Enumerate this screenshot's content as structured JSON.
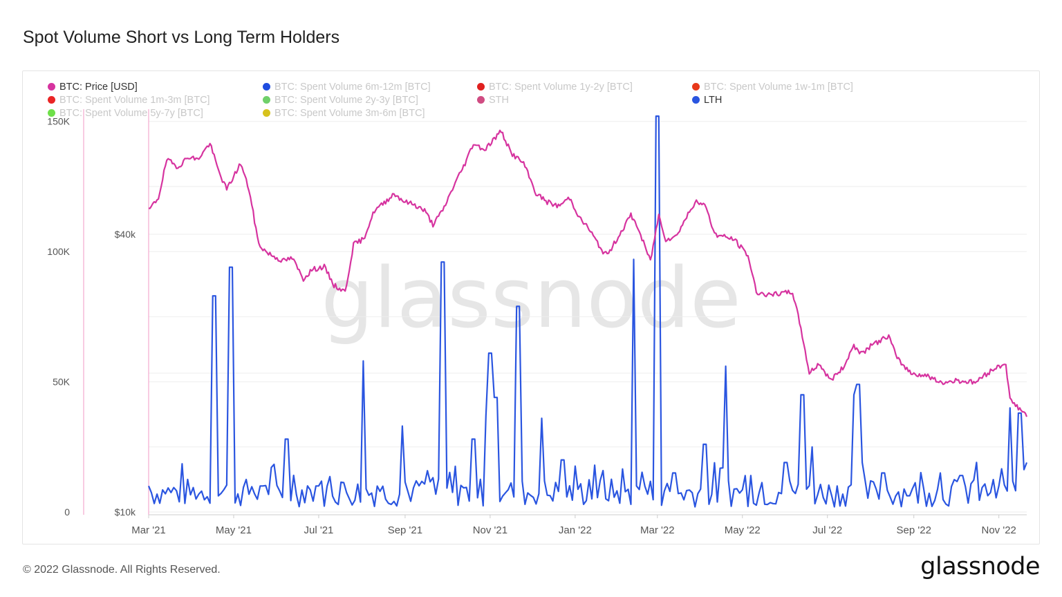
{
  "header": {
    "title": "Spot Volume Short vs Long Term Holders"
  },
  "footer": {
    "copyright": "© 2022 Glassnode. All Rights Reserved.",
    "brand": "glassnode"
  },
  "watermark": "glassnode",
  "legend": [
    {
      "label": "BTC: Price [USD]",
      "color": "#d6339f",
      "active": true
    },
    {
      "label": "BTC: Spent Volume 6m-12m [BTC]",
      "color": "#1f4de0",
      "active": false
    },
    {
      "label": "BTC: Spent Volume 1y-2y [BTC]",
      "color": "#e0201f",
      "active": false
    },
    {
      "label": "BTC: Spent Volume 1w-1m [BTC]",
      "color": "#e8381a",
      "active": false
    },
    {
      "label": "BTC: Spent Volume 1m-3m [BTC]",
      "color": "#ea2525",
      "active": false
    },
    {
      "label": "BTC: Spent Volume 2y-3y [BTC]",
      "color": "#6fd06a",
      "active": false
    },
    {
      "label": "STH",
      "color": "#d04c82",
      "active": false
    },
    {
      "label": "LTH",
      "color": "#2a55e0",
      "active": true
    },
    {
      "label": "BTC: Spent Volume 5y-7y [BTC]",
      "color": "#6fe04a",
      "active": false
    },
    {
      "label": "BTC: Spent Volume 3m-6m [BTC]",
      "color": "#d7c21d",
      "active": false
    }
  ],
  "chart_data": {
    "type": "line",
    "x_range": [
      "2021-03-01",
      "2022-11-21"
    ],
    "x_ticks": [
      "Mar '21",
      "May '21",
      "Jul '21",
      "Sep '21",
      "Nov '21",
      "Jan '22",
      "Mar '22",
      "May '22",
      "Jul '22",
      "Sep '22",
      "Nov '22"
    ],
    "left_axis": {
      "ticks": [
        "0",
        "50K",
        "100K",
        "150K"
      ],
      "range": [
        0,
        160000
      ]
    },
    "right_axis": {
      "ticks": [
        "$10k",
        "$40k"
      ],
      "scale": "log",
      "range": [
        10000,
        80000
      ]
    },
    "grid": true,
    "series": [
      {
        "name": "BTC: Price [USD]",
        "axis": "right",
        "color": "#d6339f",
        "x": [
          "2021-03-01",
          "2021-03-08",
          "2021-03-14",
          "2021-03-22",
          "2021-03-30",
          "2021-04-05",
          "2021-04-14",
          "2021-04-20",
          "2021-04-26",
          "2021-05-06",
          "2021-05-12",
          "2021-05-19",
          "2021-05-25",
          "2021-06-05",
          "2021-06-12",
          "2021-06-20",
          "2021-06-26",
          "2021-07-05",
          "2021-07-12",
          "2021-07-20",
          "2021-07-26",
          "2021-08-02",
          "2021-08-10",
          "2021-08-16",
          "2021-08-24",
          "2021-09-01",
          "2021-09-07",
          "2021-09-15",
          "2021-09-21",
          "2021-09-28",
          "2021-10-06",
          "2021-10-14",
          "2021-10-20",
          "2021-10-28",
          "2021-11-09",
          "2021-11-16",
          "2021-11-25",
          "2021-12-04",
          "2021-12-12",
          "2021-12-20",
          "2021-12-28",
          "2022-01-05",
          "2022-01-10",
          "2022-01-20",
          "2022-01-24",
          "2022-02-10",
          "2022-02-14",
          "2022-02-24",
          "2022-03-02",
          "2022-03-07",
          "2022-03-14",
          "2022-03-28",
          "2022-04-05",
          "2022-04-11",
          "2022-04-25",
          "2022-05-05",
          "2022-05-11",
          "2022-05-20",
          "2022-06-06",
          "2022-06-12",
          "2022-06-18",
          "2022-06-25",
          "2022-07-03",
          "2022-07-12",
          "2022-07-20",
          "2022-07-25",
          "2022-08-02",
          "2022-08-14",
          "2022-08-20",
          "2022-08-30",
          "2022-09-12",
          "2022-09-20",
          "2022-10-01",
          "2022-10-15",
          "2022-10-29",
          "2022-11-06",
          "2022-11-09",
          "2022-11-21"
        ],
        "y": [
          45000,
          48000,
          58000,
          56000,
          59000,
          58000,
          63000,
          55000,
          50000,
          57000,
          50000,
          38000,
          36500,
          35000,
          35500,
          32000,
          33500,
          34000,
          31000,
          30000,
          38000,
          39000,
          45000,
          46500,
          49000,
          47000,
          46500,
          45000,
          42000,
          45000,
          51000,
          57000,
          63000,
          61000,
          67000,
          60000,
          57000,
          49000,
          47000,
          46000,
          48000,
          43000,
          41500,
          37000,
          36000,
          44000,
          42000,
          35000,
          44000,
          39000,
          39500,
          47000,
          46000,
          40000,
          39000,
          36000,
          30000,
          29500,
          30000,
          25000,
          20000,
          21000,
          19300,
          20500,
          23000,
          22000,
          23000,
          24100,
          21500,
          20000,
          19700,
          19000,
          19300,
          19100,
          20500,
          21000,
          17500,
          16200
        ]
      },
      {
        "name": "LTH",
        "axis": "left",
        "color": "#2a55e0",
        "x": [
          "2021-03-01",
          "2021-04-17",
          "2021-04-29",
          "2021-05-21",
          "2021-06-08",
          "2021-06-30",
          "2021-08-02",
          "2021-08-30",
          "2021-09-28",
          "2021-10-20",
          "2021-10-30",
          "2021-11-01",
          "2021-11-05",
          "2021-11-21",
          "2021-12-08",
          "2021-12-23",
          "2022-01-15",
          "2022-02-12",
          "2022-02-14",
          "2022-03-01",
          "2022-03-13",
          "2022-04-04",
          "2022-04-19",
          "2022-05-07",
          "2022-06-01",
          "2022-06-13",
          "2022-06-20",
          "2022-07-21",
          "2022-07-23",
          "2022-08-10",
          "2022-09-20",
          "2022-10-05",
          "2022-11-01",
          "2022-11-09",
          "2022-11-16",
          "2022-11-21"
        ],
        "y": [
          10000,
          83000,
          94000,
          10000,
          28000,
          10000,
          58000,
          33000,
          96000,
          28000,
          37000,
          61000,
          44000,
          79000,
          36000,
          20000,
          18000,
          97000,
          10000,
          152000,
          15000,
          26000,
          56000,
          14000,
          19000,
          45000,
          25000,
          45000,
          49000,
          15000,
          15000,
          14000,
          10000,
          40000,
          38000,
          19000
        ]
      }
    ]
  }
}
